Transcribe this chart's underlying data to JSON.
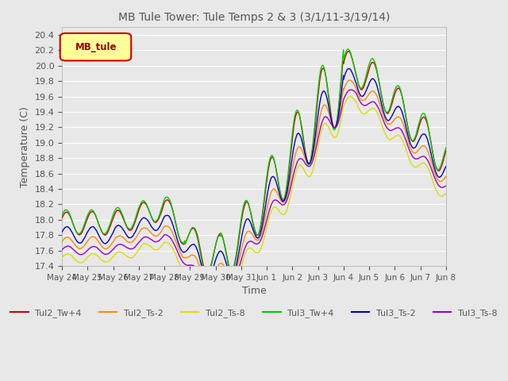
{
  "title": "MB Tule Tower: Tule Temps 2 & 3 (3/1/11-3/19/14)",
  "xlabel": "Time",
  "ylabel": "Temperature (C)",
  "ylim": [
    17.4,
    20.5
  ],
  "xlim": [
    0,
    15
  ],
  "xtick_labels": [
    "May 24",
    "May 25",
    "May 26",
    "May 27",
    "May 28",
    "May 29",
    "May 30",
    "May 31",
    "Jun 1",
    "Jun 2",
    "Jun 3",
    "Jun 4",
    "Jun 5",
    "Jun 6",
    "Jun 7",
    "Jun 8"
  ],
  "legend_label": "MB_tule",
  "series_colors": {
    "Tul2_Tw+4": "#cc0000",
    "Tul2_Ts-2": "#ff8800",
    "Tul2_Ts-8": "#dddd00",
    "Tul3_Tw+4": "#00cc00",
    "Tul3_Ts-2": "#0000cc",
    "Tul3_Ts-8": "#9900cc"
  },
  "background_color": "#e8e8e8",
  "grid_color": "#ffffff",
  "title_color": "#555555",
  "axis_label_color": "#555555",
  "figsize": [
    6.4,
    4.8
  ],
  "dpi": 100
}
